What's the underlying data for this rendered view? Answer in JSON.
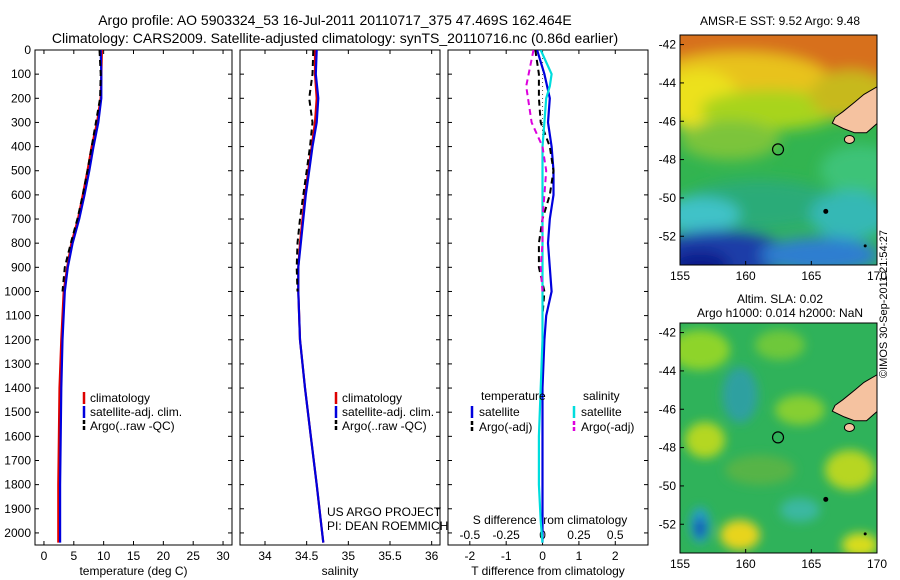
{
  "header": {
    "title_line1": "Argo profile: AO 5903324_53 16-Jul-2011 20110717_375 47.469S 162.464E",
    "title_line2": "Climatology: CARS2009. Satellite-adjusted climatology: synTS_20110716.nc (0.86d earlier)"
  },
  "maps": {
    "sst_title": "AMSR-E SST: 9.52 Argo: 9.48",
    "sla_title1": "Altim. SLA: 0.02",
    "sla_title2": "Argo h1000: 0.014 h2000: NaN",
    "x_ticks": [
      "155",
      "160",
      "165",
      "170"
    ],
    "y_ticks": [
      "-42",
      "-44",
      "-46",
      "-48",
      "-50",
      "-52"
    ],
    "xlim": [
      155,
      170
    ],
    "ylim": [
      -53.5,
      -41.5
    ],
    "float_position": {
      "lon": 162.464,
      "lat": -47.469
    },
    "land_color": "#f5c2a0",
    "stamp": "©IMOS 30-Sep-2011 21:54:27"
  },
  "credits": {
    "line1": "US ARGO PROJECT",
    "line2": "PI: DEAN ROEMMICH"
  },
  "chart_data": [
    {
      "type": "line",
      "xlabel": "temperature (deg C)",
      "xlim": [
        -1.5,
        31.5
      ],
      "ylim": [
        2050,
        0
      ],
      "x_ticks": [
        "0",
        "5",
        "10",
        "15",
        "20",
        "25",
        "30"
      ],
      "y_ticks": [
        "0",
        "100",
        "200",
        "300",
        "400",
        "500",
        "600",
        "700",
        "800",
        "900",
        "1000",
        "1100",
        "1200",
        "1300",
        "1400",
        "1500",
        "1600",
        "1700",
        "1800",
        "1900",
        "2000"
      ],
      "legend": [
        "climatology",
        "satellite-adj. clim.",
        "Argo(..raw -QC)"
      ],
      "series": [
        {
          "name": "climatology",
          "color": "#dd0000",
          "style": "solid",
          "x": [
            9.7,
            9.6,
            9.5,
            8.9,
            8.0,
            7.3,
            6.5,
            5.7,
            4.6,
            3.9,
            3.3,
            2.9,
            2.6,
            2.5,
            2.4,
            2.4
          ],
          "y": [
            0,
            100,
            200,
            300,
            400,
            500,
            600,
            700,
            800,
            900,
            1000,
            1200,
            1400,
            1600,
            1800,
            2040
          ]
        },
        {
          "name": "satellite-adj. clim.",
          "color": "#0000dd",
          "style": "solid",
          "x": [
            9.5,
            9.6,
            9.6,
            9.1,
            8.3,
            7.6,
            6.8,
            5.9,
            4.8,
            4.0,
            3.5,
            3.1,
            2.9,
            2.8,
            2.7,
            2.7
          ],
          "y": [
            0,
            100,
            200,
            300,
            400,
            500,
            600,
            700,
            800,
            900,
            1000,
            1200,
            1400,
            1600,
            1800,
            2040
          ]
        },
        {
          "name": "Argo(..raw -QC)",
          "color": "#000000",
          "style": "dashed",
          "x": [
            9.3,
            9.5,
            9.4,
            8.7,
            8.0,
            7.3,
            6.5,
            5.6,
            4.5,
            3.5,
            3.1
          ],
          "y": [
            0,
            100,
            200,
            300,
            400,
            500,
            600,
            700,
            800,
            900,
            1000
          ]
        }
      ]
    },
    {
      "type": "line",
      "xlabel": "salinity",
      "xlim": [
        33.7,
        36.1
      ],
      "ylim": [
        2050,
        0
      ],
      "x_ticks": [
        "34",
        "34.5",
        "35",
        "35.5",
        "36"
      ],
      "legend": [
        "climatology",
        "satellite-adj. clim.",
        "Argo(..raw -QC)"
      ],
      "series": [
        {
          "name": "climatology",
          "color": "#dd0000",
          "style": "solid",
          "x": [
            34.6,
            34.6,
            34.62,
            34.6,
            34.56,
            34.52,
            34.48,
            34.45,
            34.42,
            34.4,
            34.4,
            34.42,
            34.48,
            34.55,
            34.62,
            34.67,
            34.7
          ],
          "y": [
            0,
            100,
            200,
            300,
            400,
            500,
            600,
            700,
            800,
            900,
            1000,
            1200,
            1400,
            1600,
            1800,
            1950,
            2040
          ]
        },
        {
          "name": "satellite-adj. clim.",
          "color": "#0000dd",
          "style": "solid",
          "x": [
            34.62,
            34.61,
            34.64,
            34.62,
            34.57,
            34.53,
            34.49,
            34.46,
            34.43,
            34.4,
            34.4,
            34.42,
            34.48,
            34.55,
            34.62,
            34.67,
            34.7
          ],
          "y": [
            0,
            100,
            200,
            300,
            400,
            500,
            600,
            700,
            800,
            900,
            1000,
            1200,
            1400,
            1600,
            1800,
            1950,
            2040
          ]
        },
        {
          "name": "Argo(..raw -QC)",
          "color": "#000000",
          "style": "dashed",
          "x": [
            34.58,
            34.57,
            34.53,
            34.57,
            34.54,
            34.5,
            34.46,
            34.42,
            34.39,
            34.38,
            34.39
          ],
          "y": [
            0,
            100,
            200,
            300,
            400,
            500,
            600,
            700,
            800,
            900,
            1000
          ]
        }
      ]
    },
    {
      "type": "line",
      "xlabel": "T difference from climatology",
      "xlabel_top": "S difference from climatology",
      "xlim": [
        -2.6,
        2.9
      ],
      "ylim": [
        2050,
        0
      ],
      "x_ticks": [
        "-2",
        "-1",
        "0",
        "1",
        "2"
      ],
      "x_ticks_top": [
        "-0.5",
        "-0.25",
        "0",
        "0.25",
        "0.5"
      ],
      "legend_headers": [
        "temperature",
        "salinity"
      ],
      "legend": [
        "satellite",
        "Argo(-adj)",
        "satellite",
        "Argo(-adj)"
      ],
      "series": [
        {
          "name": "satellite",
          "group": "temperature",
          "color": "#0000dd",
          "style": "solid",
          "x": [
            -0.15,
            0.05,
            0.2,
            0.15,
            0.25,
            0.3,
            0.3,
            0.2,
            0.15,
            0.2,
            0.25,
            0.1,
            0.05,
            0.0,
            0.0,
            0.0
          ],
          "y": [
            0,
            100,
            200,
            300,
            400,
            500,
            600,
            700,
            800,
            900,
            1000,
            1100,
            1200,
            1400,
            1600,
            2040
          ]
        },
        {
          "name": "Argo(-adj)",
          "group": "temperature",
          "color": "#000000",
          "style": "dashed",
          "x": [
            -0.2,
            -0.1,
            -0.1,
            -0.05,
            0.2,
            0.3,
            0.2,
            0.0,
            -0.1,
            -0.1,
            0.05,
            0.0
          ],
          "y": [
            0,
            100,
            200,
            300,
            400,
            500,
            600,
            700,
            800,
            900,
            1000,
            1100
          ]
        },
        {
          "name": "satellite",
          "group": "salinity",
          "color": "#00dddd",
          "style": "solid",
          "x": [
            -0.05,
            0.25,
            0.2,
            0.1,
            0.05,
            0.0,
            0.0,
            0.0,
            0.0,
            0.0,
            -0.05,
            -0.1,
            -0.1,
            -0.05,
            0.0
          ],
          "y": [
            0,
            100,
            150,
            200,
            300,
            400,
            600,
            800,
            1000,
            1200,
            1400,
            1600,
            1800,
            1950,
            2040
          ]
        },
        {
          "name": "Argo(-adj)",
          "group": "salinity",
          "color": "#dd00dd",
          "style": "dashed",
          "x": [
            -0.25,
            -0.45,
            -0.3,
            0.0,
            0.1,
            0.05,
            0.0,
            0.0,
            -0.05,
            0.0
          ],
          "y": [
            0,
            150,
            300,
            400,
            500,
            600,
            700,
            800,
            900,
            1000
          ]
        }
      ]
    }
  ]
}
